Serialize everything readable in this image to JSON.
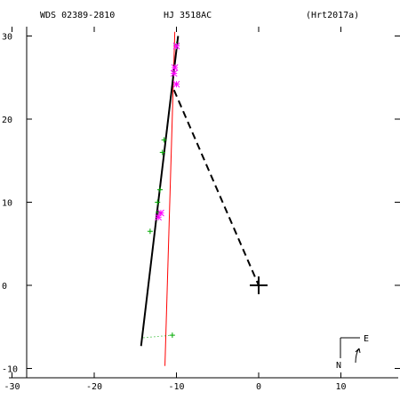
{
  "header": {
    "wds": "WDS 02389-2810",
    "name": "HJ 3518AC",
    "ref": "(Hrt2017a)"
  },
  "compass": {
    "north": "N",
    "east": "E"
  },
  "chart_data": {
    "type": "scatter",
    "title": "WDS 02389-2810   HJ 3518AC   (Hrt2017a)",
    "xlabel": "",
    "ylabel": "",
    "xlim": [
      -30,
      15
    ],
    "ylim": [
      -12,
      31
    ],
    "x_ticks": [
      -30,
      -20,
      -10,
      0,
      10
    ],
    "y_ticks": [
      -10,
      0,
      10,
      20,
      30
    ],
    "grid": false,
    "primary": {
      "x": 0,
      "y": 0
    },
    "measurements_plus": [
      {
        "x": -10.0,
        "y": 29.0
      },
      {
        "x": -11.5,
        "y": 17.5
      },
      {
        "x": -11.7,
        "y": 16.0
      },
      {
        "x": -12.0,
        "y": 11.5
      },
      {
        "x": -12.3,
        "y": 10.0
      },
      {
        "x": -12.2,
        "y": 8.8
      },
      {
        "x": -13.2,
        "y": 6.5
      }
    ],
    "measurements_star": [
      {
        "x": -10.0,
        "y": 28.8
      },
      {
        "x": -10.2,
        "y": 26.2
      },
      {
        "x": -10.3,
        "y": 25.5
      },
      {
        "x": -10.0,
        "y": 24.2
      },
      {
        "x": -11.9,
        "y": 8.7
      },
      {
        "x": -12.2,
        "y": 8.2
      }
    ],
    "outlier": {
      "x": -10.5,
      "y": -6.0
    },
    "outlier_link_end": {
      "x": -14.0,
      "y": -6.3
    },
    "fit_line_black": [
      {
        "x": -14.3,
        "y": -7.3
      },
      {
        "x": -9.8,
        "y": 30.0
      }
    ],
    "fit_line_red": [
      {
        "x": -11.4,
        "y": -9.7
      },
      {
        "x": -10.2,
        "y": 30.5
      }
    ],
    "dashed_line": [
      {
        "x": -10.3,
        "y": 23.5
      },
      {
        "x": 0,
        "y": 0
      }
    ]
  }
}
